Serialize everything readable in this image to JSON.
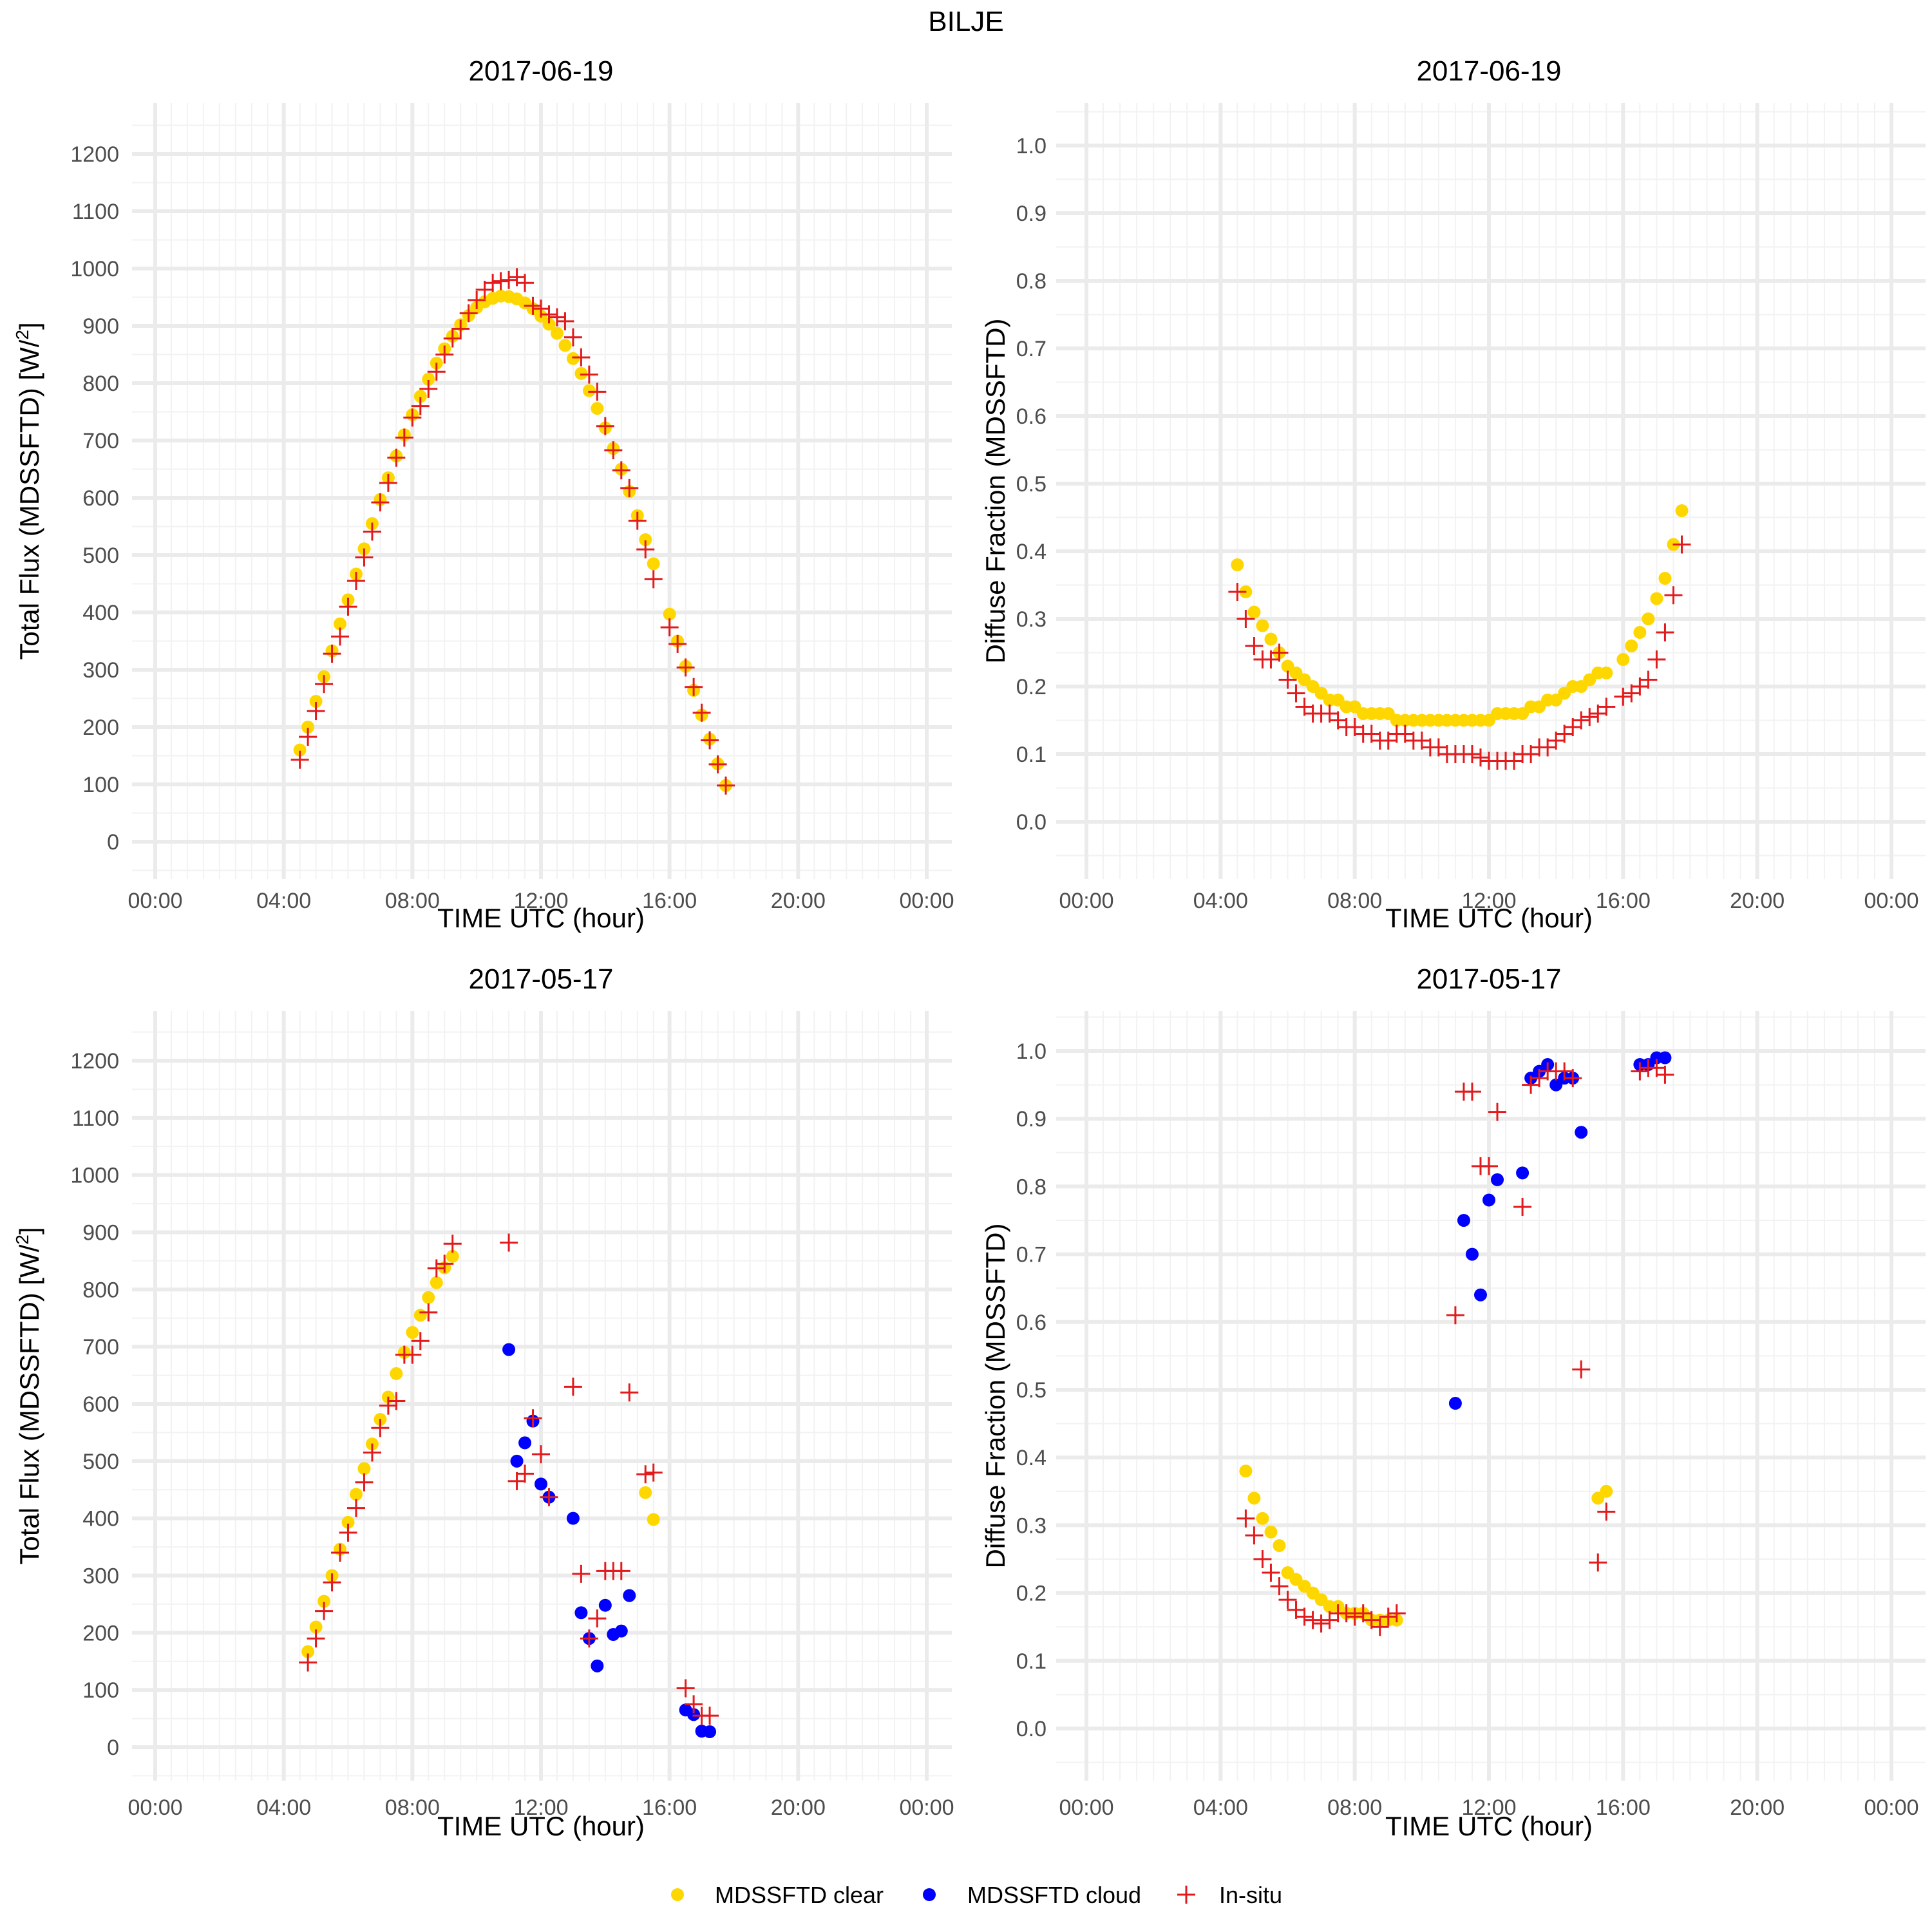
{
  "suptitle": "BILJE",
  "legend": {
    "position": "bottom",
    "items": [
      {
        "label": "MDSSFTD clear",
        "shape": "circle",
        "color": "#FFD700"
      },
      {
        "label": "MDSSFTD cloud",
        "shape": "circle",
        "color": "#0000FF"
      },
      {
        "label": "In-situ",
        "shape": "plus",
        "color": "#E31A1C"
      }
    ]
  },
  "chart_data": [
    {
      "type": "scatter",
      "title": "2017-06-19",
      "xlabel": "TIME UTC (hour)",
      "ylabel": "Total Flux (MDSSFTD) [W/m2]",
      "xlim": [
        0,
        24
      ],
      "ylim": [
        -25,
        1275
      ],
      "xticks": [
        "00:00",
        "04:00",
        "08:00",
        "12:00",
        "16:00",
        "20:00",
        "00:00"
      ],
      "yticks": [
        "0",
        "100",
        "200",
        "300",
        "400",
        "500",
        "600",
        "700",
        "800",
        "900",
        "1000",
        "1100",
        "1200"
      ],
      "ytick_values": [
        0,
        100,
        200,
        300,
        400,
        500,
        600,
        700,
        800,
        900,
        1000,
        1100,
        1200
      ],
      "grid": true,
      "series": [
        {
          "name": "MDSSFTD clear",
          "x": [
            4.5,
            4.75,
            5.0,
            5.25,
            5.5,
            5.75,
            6.0,
            6.25,
            6.5,
            6.75,
            7.0,
            7.25,
            7.5,
            7.75,
            8.0,
            8.25,
            8.5,
            8.75,
            9.0,
            9.25,
            9.5,
            9.75,
            10.0,
            10.25,
            10.5,
            10.75,
            11.0,
            11.25,
            11.5,
            11.75,
            12.0,
            12.25,
            12.5,
            12.75,
            13.0,
            13.25,
            13.5,
            13.75,
            14.0,
            14.25,
            14.5,
            14.75,
            15.0,
            15.25,
            15.5,
            16.0,
            16.25,
            16.5,
            16.75,
            17.0,
            17.25,
            17.5,
            17.75
          ],
          "y": [
            160,
            200,
            245,
            288,
            333,
            380,
            422,
            467,
            511,
            555,
            597,
            635,
            673,
            710,
            745,
            777,
            807,
            835,
            860,
            882,
            902,
            918,
            932,
            942,
            948,
            952,
            951,
            947,
            940,
            930,
            917,
            903,
            887,
            866,
            843,
            817,
            787,
            756,
            722,
            686,
            650,
            611,
            569,
            527,
            485,
            397,
            350,
            306,
            264,
            221,
            179,
            136,
            98
          ]
        },
        {
          "name": "MDSSFTD cloud",
          "x": [],
          "y": []
        },
        {
          "name": "In-situ",
          "x": [
            4.5,
            4.75,
            5.0,
            5.25,
            5.5,
            5.75,
            6.0,
            6.25,
            6.5,
            6.75,
            7.0,
            7.25,
            7.5,
            7.75,
            8.0,
            8.25,
            8.5,
            8.75,
            9.0,
            9.25,
            9.5,
            9.75,
            10.0,
            10.25,
            10.5,
            10.75,
            11.0,
            11.25,
            11.5,
            11.75,
            12.0,
            12.25,
            12.5,
            12.75,
            13.0,
            13.25,
            13.5,
            13.75,
            14.0,
            14.25,
            14.5,
            14.75,
            15.0,
            15.25,
            15.5,
            16.0,
            16.25,
            16.5,
            16.75,
            17.0,
            17.25,
            17.5,
            17.75
          ],
          "y": [
            143,
            183,
            228,
            275,
            328,
            358,
            410,
            455,
            496,
            541,
            592,
            626,
            670,
            705,
            740,
            760,
            790,
            820,
            850,
            878,
            895,
            922,
            945,
            963,
            975,
            978,
            980,
            985,
            975,
            935,
            930,
            920,
            915,
            908,
            880,
            845,
            815,
            785,
            725,
            683,
            648,
            617,
            560,
            510,
            458,
            374,
            345,
            304,
            270,
            225,
            177,
            135,
            98
          ]
        }
      ]
    },
    {
      "type": "scatter",
      "title": "2017-06-19",
      "xlabel": "TIME UTC (hour)",
      "ylabel": "Diffuse Fraction (MDSSFTD)",
      "xlim": [
        0,
        24
      ],
      "ylim": [
        -0.05,
        1.05
      ],
      "xticks": [
        "00:00",
        "04:00",
        "08:00",
        "12:00",
        "16:00",
        "20:00",
        "00:00"
      ],
      "yticks": [
        "0.0",
        "0.1",
        "0.2",
        "0.3",
        "0.4",
        "0.5",
        "0.6",
        "0.7",
        "0.8",
        "0.9",
        "1.0"
      ],
      "ytick_values": [
        0,
        0.1,
        0.2,
        0.3,
        0.4,
        0.5,
        0.6,
        0.7,
        0.8,
        0.9,
        1.0
      ],
      "grid": true,
      "series": [
        {
          "name": "MDSSFTD clear",
          "x": [
            4.5,
            4.75,
            5.0,
            5.25,
            5.5,
            5.75,
            6.0,
            6.25,
            6.5,
            6.75,
            7.0,
            7.25,
            7.5,
            7.75,
            8.0,
            8.25,
            8.5,
            8.75,
            9.0,
            9.25,
            9.5,
            9.75,
            10.0,
            10.25,
            10.5,
            10.75,
            11.0,
            11.25,
            11.5,
            11.75,
            12.0,
            12.25,
            12.5,
            12.75,
            13.0,
            13.25,
            13.5,
            13.75,
            14.0,
            14.25,
            14.5,
            14.75,
            15.0,
            15.25,
            15.5,
            16.0,
            16.25,
            16.5,
            16.75,
            17.0,
            17.25,
            17.5,
            17.75
          ],
          "y": [
            0.38,
            0.34,
            0.31,
            0.29,
            0.27,
            0.25,
            0.23,
            0.22,
            0.21,
            0.2,
            0.19,
            0.18,
            0.18,
            0.17,
            0.17,
            0.16,
            0.16,
            0.16,
            0.16,
            0.15,
            0.15,
            0.15,
            0.15,
            0.15,
            0.15,
            0.15,
            0.15,
            0.15,
            0.15,
            0.15,
            0.15,
            0.16,
            0.16,
            0.16,
            0.16,
            0.17,
            0.17,
            0.18,
            0.18,
            0.19,
            0.2,
            0.2,
            0.21,
            0.22,
            0.22,
            0.24,
            0.26,
            0.28,
            0.3,
            0.33,
            0.36,
            0.41,
            0.46
          ]
        },
        {
          "name": "MDSSFTD cloud",
          "x": [],
          "y": []
        },
        {
          "name": "In-situ",
          "x": [
            4.5,
            4.75,
            5.0,
            5.25,
            5.5,
            5.75,
            6.0,
            6.25,
            6.5,
            6.75,
            7.0,
            7.25,
            7.5,
            7.75,
            8.0,
            8.25,
            8.5,
            8.75,
            9.0,
            9.25,
            9.5,
            9.75,
            10.0,
            10.25,
            10.5,
            10.75,
            11.0,
            11.25,
            11.5,
            11.75,
            12.0,
            12.25,
            12.5,
            12.75,
            13.0,
            13.25,
            13.5,
            13.75,
            14.0,
            14.25,
            14.5,
            14.75,
            15.0,
            15.25,
            15.5,
            16.0,
            16.25,
            16.5,
            16.75,
            17.0,
            17.25,
            17.5,
            17.75
          ],
          "y": [
            0.34,
            0.3,
            0.26,
            0.24,
            0.24,
            0.25,
            0.21,
            0.19,
            0.17,
            0.16,
            0.16,
            0.16,
            0.15,
            0.14,
            0.14,
            0.13,
            0.13,
            0.12,
            0.12,
            0.13,
            0.13,
            0.12,
            0.12,
            0.11,
            0.11,
            0.1,
            0.1,
            0.1,
            0.1,
            0.095,
            0.09,
            0.09,
            0.09,
            0.09,
            0.1,
            0.1,
            0.11,
            0.11,
            0.12,
            0.13,
            0.14,
            0.15,
            0.155,
            0.16,
            0.17,
            0.185,
            0.19,
            0.2,
            0.21,
            0.24,
            0.28,
            0.335,
            0.41
          ]
        }
      ]
    },
    {
      "type": "scatter",
      "title": "2017-05-17",
      "xlabel": "TIME UTC (hour)",
      "ylabel": "Total Flux (MDSSFTD) [W/m2]",
      "xlim": [
        0,
        24
      ],
      "ylim": [
        -25,
        1275
      ],
      "xticks": [
        "00:00",
        "04:00",
        "08:00",
        "12:00",
        "16:00",
        "20:00",
        "00:00"
      ],
      "yticks": [
        "0",
        "100",
        "200",
        "300",
        "400",
        "500",
        "600",
        "700",
        "800",
        "900",
        "1000",
        "1100",
        "1200"
      ],
      "ytick_values": [
        0,
        100,
        200,
        300,
        400,
        500,
        600,
        700,
        800,
        900,
        1000,
        1100,
        1200
      ],
      "grid": true,
      "series": [
        {
          "name": "MDSSFTD clear",
          "x": [
            4.75,
            5.0,
            5.25,
            5.5,
            5.75,
            6.0,
            6.25,
            6.5,
            6.75,
            7.0,
            7.25,
            7.5,
            7.75,
            8.0,
            8.25,
            8.5,
            8.75,
            9.0,
            9.25,
            15.25,
            15.5
          ],
          "y": [
            167,
            210,
            255,
            300,
            346,
            393,
            442,
            487,
            530,
            573,
            612,
            653,
            690,
            725,
            755,
            786,
            812,
            838,
            858,
            445,
            398
          ]
        },
        {
          "name": "MDSSFTD cloud",
          "x": [
            11.0,
            11.25,
            11.5,
            11.75,
            12.0,
            12.25,
            13.0,
            13.25,
            13.5,
            13.75,
            14.0,
            14.25,
            14.5,
            14.75,
            16.5,
            16.75,
            17.0,
            17.25
          ],
          "y": [
            695,
            500,
            532,
            570,
            460,
            437,
            400,
            235,
            190,
            142,
            248,
            197,
            203,
            265,
            65,
            57,
            28,
            27
          ]
        },
        {
          "name": "In-situ",
          "x": [
            4.75,
            5.0,
            5.25,
            5.5,
            5.75,
            6.0,
            6.25,
            6.5,
            6.75,
            7.0,
            7.25,
            7.5,
            7.75,
            8.0,
            8.25,
            8.5,
            8.75,
            9.0,
            9.25,
            11.0,
            11.25,
            11.5,
            11.75,
            12.0,
            12.25,
            13.0,
            13.25,
            13.5,
            13.75,
            14.0,
            14.25,
            14.5,
            14.75,
            15.25,
            15.5,
            16.5,
            16.75,
            17.0,
            17.25
          ],
          "y": [
            148,
            190,
            238,
            288,
            340,
            375,
            418,
            463,
            515,
            558,
            597,
            605,
            686,
            686,
            710,
            760,
            837,
            845,
            880,
            882,
            465,
            478,
            575,
            512,
            437,
            630,
            303,
            190,
            225,
            308,
            308,
            308,
            620,
            477,
            480,
            103,
            75,
            55,
            55
          ]
        }
      ]
    },
    {
      "type": "scatter",
      "title": "2017-05-17",
      "xlabel": "TIME UTC (hour)",
      "ylabel": "Diffuse Fraction (MDSSFTD)",
      "xlim": [
        0,
        24
      ],
      "ylim": [
        -0.05,
        1.05
      ],
      "xticks": [
        "00:00",
        "04:00",
        "08:00",
        "12:00",
        "16:00",
        "20:00",
        "00:00"
      ],
      "yticks": [
        "0.0",
        "0.1",
        "0.2",
        "0.3",
        "0.4",
        "0.5",
        "0.6",
        "0.7",
        "0.8",
        "0.9",
        "1.0"
      ],
      "ytick_values": [
        0,
        0.1,
        0.2,
        0.3,
        0.4,
        0.5,
        0.6,
        0.7,
        0.8,
        0.9,
        1.0
      ],
      "grid": true,
      "series": [
        {
          "name": "MDSSFTD clear",
          "x": [
            4.75,
            5.0,
            5.25,
            5.5,
            5.75,
            6.0,
            6.25,
            6.5,
            6.75,
            7.0,
            7.25,
            7.5,
            7.75,
            8.0,
            8.25,
            8.5,
            8.75,
            9.0,
            9.25,
            15.25,
            15.5
          ],
          "y": [
            0.38,
            0.34,
            0.31,
            0.29,
            0.27,
            0.23,
            0.22,
            0.21,
            0.2,
            0.19,
            0.18,
            0.18,
            0.17,
            0.17,
            0.17,
            0.16,
            0.16,
            0.16,
            0.16,
            0.34,
            0.35
          ]
        },
        {
          "name": "MDSSFTD cloud",
          "x": [
            11.0,
            11.25,
            11.5,
            11.75,
            12.0,
            12.25,
            13.0,
            13.25,
            13.5,
            13.75,
            14.0,
            14.25,
            14.5,
            14.75,
            16.5,
            16.75,
            17.0,
            17.25
          ],
          "y": [
            0.48,
            0.75,
            0.7,
            0.64,
            0.78,
            0.81,
            0.82,
            0.96,
            0.97,
            0.98,
            0.95,
            0.96,
            0.96,
            0.88,
            0.98,
            0.98,
            0.99,
            0.99
          ]
        },
        {
          "name": "In-situ",
          "x": [
            4.75,
            5.0,
            5.25,
            5.5,
            5.75,
            6.0,
            6.25,
            6.5,
            6.75,
            7.0,
            7.25,
            7.5,
            7.75,
            8.0,
            8.25,
            8.5,
            8.75,
            9.0,
            9.25,
            11.0,
            11.25,
            11.5,
            11.75,
            12.0,
            12.25,
            13.0,
            13.25,
            13.5,
            13.75,
            14.0,
            14.25,
            14.5,
            14.75,
            15.25,
            15.5,
            16.5,
            16.75,
            17.0,
            17.25
          ],
          "y": [
            0.31,
            0.285,
            0.25,
            0.23,
            0.21,
            0.19,
            0.175,
            0.165,
            0.16,
            0.155,
            0.16,
            0.17,
            0.17,
            0.165,
            0.17,
            0.16,
            0.15,
            0.165,
            0.17,
            0.61,
            0.94,
            0.94,
            0.83,
            0.83,
            0.91,
            0.77,
            0.95,
            0.96,
            0.97,
            0.97,
            0.97,
            0.96,
            0.53,
            0.245,
            0.32,
            0.97,
            0.975,
            0.975,
            0.965
          ]
        }
      ]
    }
  ]
}
